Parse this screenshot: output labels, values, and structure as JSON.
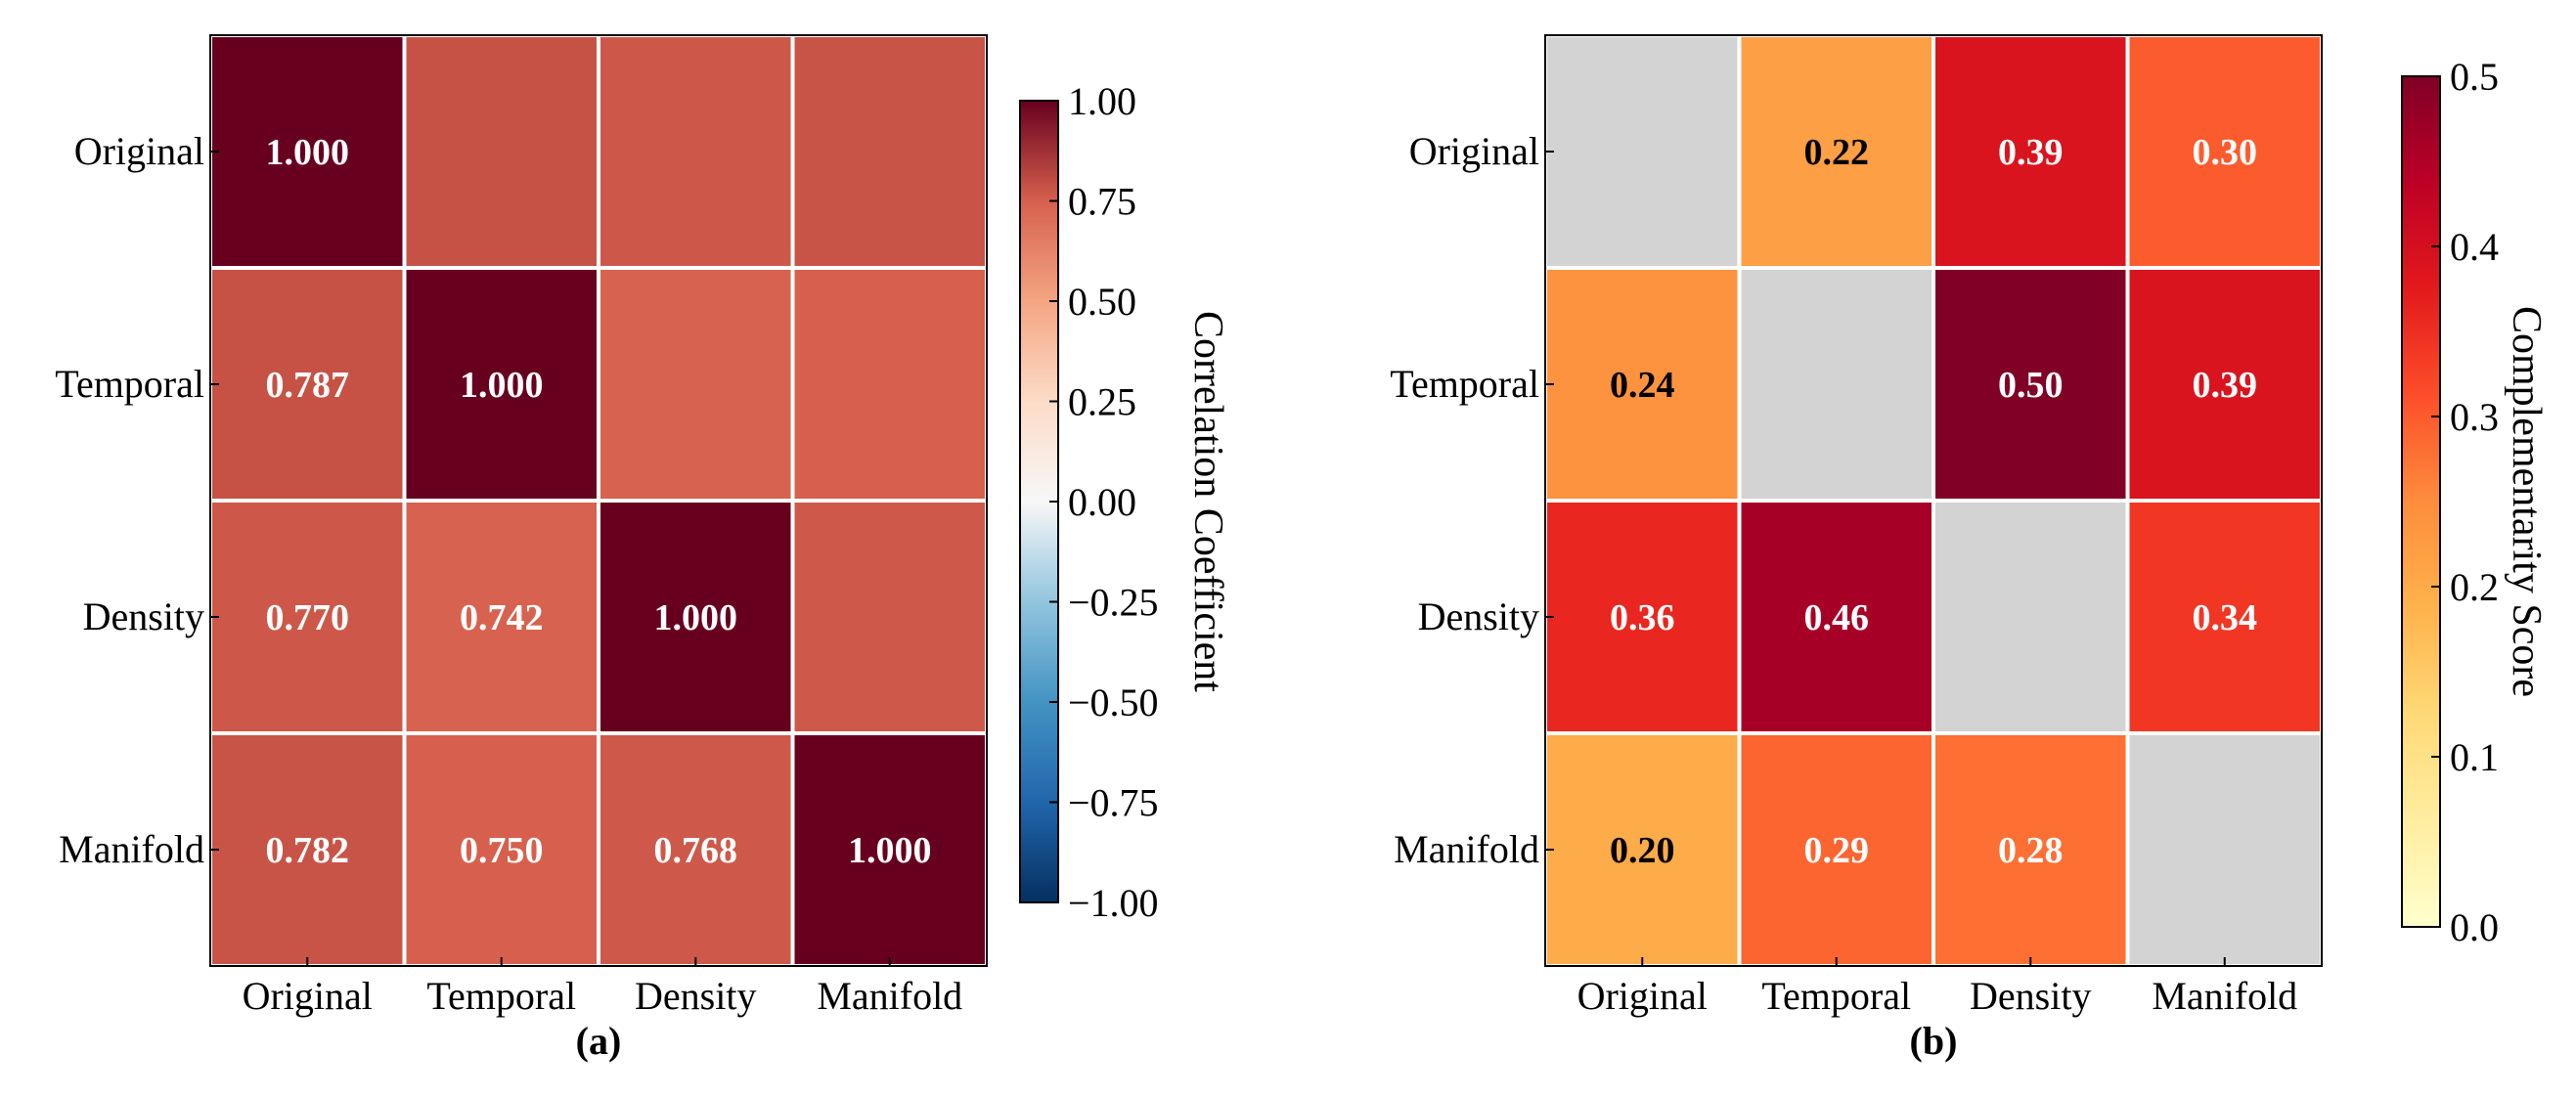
{
  "chart_data": [
    {
      "type": "heatmap",
      "panel_label": "(a)",
      "rows": [
        "Original",
        "Temporal",
        "Density",
        "Manifold"
      ],
      "cols": [
        "Original",
        "Temporal",
        "Density",
        "Manifold"
      ],
      "values": [
        [
          1.0,
          0.787,
          0.77,
          0.782
        ],
        [
          0.787,
          1.0,
          0.742,
          0.75
        ],
        [
          0.77,
          0.742,
          1.0,
          0.768
        ],
        [
          0.782,
          0.75,
          0.768,
          1.0
        ]
      ],
      "labels": [
        [
          "1.000",
          null,
          null,
          null
        ],
        [
          "0.787",
          "1.000",
          null,
          null
        ],
        [
          "0.770",
          "0.742",
          "1.000",
          null
        ],
        [
          "0.782",
          "0.750",
          "0.768",
          "1.000"
        ]
      ],
      "colormap": "diverging-red-blue",
      "colorbar": {
        "label": "Correlation Coefficient",
        "vmin": -1.0,
        "vmax": 1.0,
        "ticks": [
          1.0,
          0.75,
          0.5,
          0.25,
          0.0,
          -0.25,
          -0.5,
          -0.75,
          -1.0
        ],
        "tick_labels": [
          "1.00",
          "0.75",
          "0.50",
          "0.25",
          "0.00",
          "−0.25",
          "−0.50",
          "−0.75",
          "−1.00"
        ]
      }
    },
    {
      "type": "heatmap",
      "panel_label": "(b)",
      "rows": [
        "Original",
        "Temporal",
        "Density",
        "Manifold"
      ],
      "cols": [
        "Original",
        "Temporal",
        "Density",
        "Manifold"
      ],
      "values": [
        [
          null,
          0.22,
          0.39,
          0.3
        ],
        [
          0.24,
          null,
          0.5,
          0.39
        ],
        [
          0.36,
          0.46,
          null,
          0.34
        ],
        [
          0.2,
          0.29,
          0.28,
          null
        ]
      ],
      "labels": [
        [
          null,
          "0.22",
          "0.39",
          "0.30"
        ],
        [
          "0.24",
          null,
          "0.50",
          "0.39"
        ],
        [
          "0.36",
          "0.46",
          null,
          "0.34"
        ],
        [
          "0.20",
          "0.29",
          "0.28",
          null
        ]
      ],
      "colormap": "YlOrRd",
      "missing_color": "#d3d3d3",
      "colorbar": {
        "label": "Complementarity Score",
        "vmin": 0.0,
        "vmax": 0.5,
        "ticks": [
          0.5,
          0.4,
          0.3,
          0.2,
          0.1,
          0.0
        ],
        "tick_labels": [
          "0.5",
          "0.4",
          "0.3",
          "0.2",
          "0.1",
          "0.0"
        ]
      }
    }
  ]
}
